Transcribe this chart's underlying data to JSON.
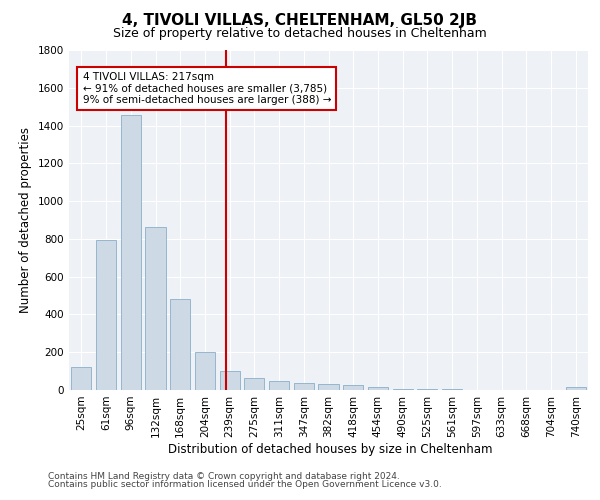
{
  "title": "4, TIVOLI VILLAS, CHELTENHAM, GL50 2JB",
  "subtitle": "Size of property relative to detached houses in Cheltenham",
  "xlabel": "Distribution of detached houses by size in Cheltenham",
  "ylabel": "Number of detached properties",
  "bar_color": "#cdd9e5",
  "bar_edge_color": "#8aafc8",
  "background_color": "#ffffff",
  "plot_bg_color": "#eef2f7",
  "grid_color": "#ffffff",
  "vline_color": "#cc0000",
  "annotation_line1": "4 TIVOLI VILLAS: 217sqm",
  "annotation_line2": "← 91% of detached houses are smaller (3,785)",
  "annotation_line3": "9% of semi-detached houses are larger (388) →",
  "annotation_box_color": "#cc0000",
  "categories": [
    "25sqm",
    "61sqm",
    "96sqm",
    "132sqm",
    "168sqm",
    "204sqm",
    "239sqm",
    "275sqm",
    "311sqm",
    "347sqm",
    "382sqm",
    "418sqm",
    "454sqm",
    "490sqm",
    "525sqm",
    "561sqm",
    "597sqm",
    "633sqm",
    "668sqm",
    "704sqm",
    "740sqm"
  ],
  "values": [
    120,
    795,
    1455,
    865,
    480,
    200,
    100,
    65,
    50,
    35,
    30,
    25,
    15,
    5,
    5,
    3,
    2,
    2,
    2,
    2,
    15
  ],
  "ylim": [
    0,
    1800
  ],
  "yticks": [
    0,
    200,
    400,
    600,
    800,
    1000,
    1200,
    1400,
    1600,
    1800
  ],
  "footer_line1": "Contains HM Land Registry data © Crown copyright and database right 2024.",
  "footer_line2": "Contains public sector information licensed under the Open Government Licence v3.0.",
  "title_fontsize": 11,
  "subtitle_fontsize": 9,
  "axis_label_fontsize": 8.5,
  "tick_fontsize": 7.5,
  "annotation_fontsize": 7.5,
  "footer_fontsize": 6.5
}
